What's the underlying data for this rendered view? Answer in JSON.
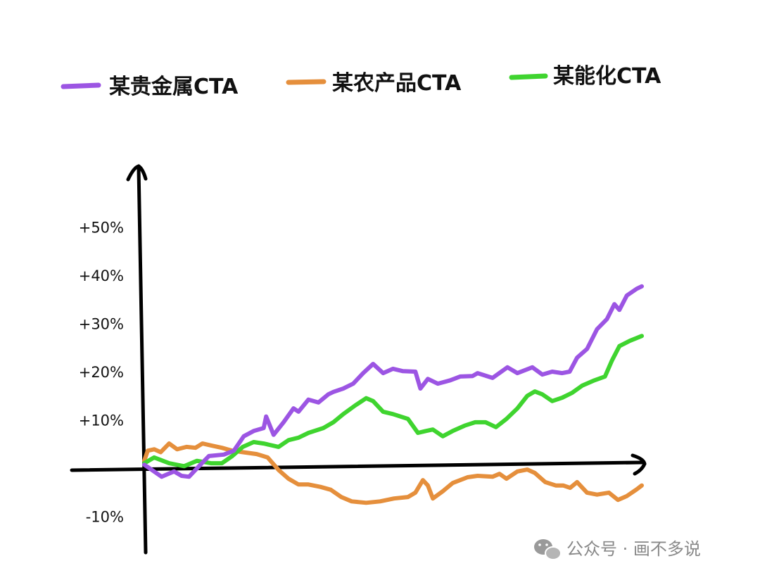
{
  "chart_data": {
    "type": "line",
    "title": "",
    "xlabel": "",
    "ylabel": "",
    "ylim": [
      -17,
      62
    ],
    "xlim": [
      0,
      100
    ],
    "grid": false,
    "legend_position": "top",
    "yticks": [
      {
        "label": "+50%",
        "value": 50
      },
      {
        "label": "+40%",
        "value": 40
      },
      {
        "label": "+30%",
        "value": 30
      },
      {
        "label": "+20%",
        "value": 20
      },
      {
        "label": "+10%",
        "value": 10
      },
      {
        "label": "-10%",
        "value": -10
      }
    ],
    "series": [
      {
        "name": "某贵金属CTA",
        "color": "#9c55e3",
        "x": [
          0,
          1,
          3.5,
          6,
          7.5,
          9,
          11,
          13,
          16,
          18,
          20,
          22,
          24,
          24.5,
          26,
          28,
          30,
          31,
          33,
          35,
          37,
          38,
          40,
          42,
          44,
          46,
          48,
          50,
          52,
          54.5,
          55.5,
          57,
          59,
          61.5,
          63.5,
          66,
          67,
          70,
          73,
          75,
          78,
          80,
          82,
          84,
          85.5,
          87,
          89,
          91,
          93,
          94.5,
          95.5,
          97,
          99,
          100
        ],
        "values": [
          0.7,
          0,
          -1.8,
          -0.7,
          -1.6,
          -1.8,
          0.4,
          2.5,
          2.8,
          3.6,
          6.6,
          7.7,
          8.3,
          10.7,
          6.9,
          9.5,
          12.4,
          11.7,
          14.2,
          13.6,
          15.3,
          15.8,
          16.5,
          17.5,
          19.7,
          21.6,
          19.7,
          20.6,
          20.1,
          20,
          16.5,
          18.5,
          17.5,
          18.2,
          19,
          19.1,
          19.7,
          18.7,
          20.9,
          19.7,
          20.9,
          19.4,
          20,
          19.7,
          20,
          22.9,
          24.7,
          28.8,
          30.9,
          34,
          32.8,
          35.8,
          37.2,
          37.7
        ]
      },
      {
        "name": "某农产品CTA",
        "color": "#e58f3c",
        "x": [
          0,
          0.7,
          2,
          3.3,
          5,
          6.6,
          8.5,
          10.3,
          11.7,
          13.4,
          15.6,
          17.7,
          19.8,
          22.6,
          24.8,
          27,
          29,
          31,
          33,
          35.4,
          37.5,
          39.6,
          41.7,
          44.6,
          47.4,
          50.2,
          53,
          54.5,
          56,
          57,
          58,
          60,
          62,
          65,
          67,
          70,
          71.4,
          72.8,
          75,
          77,
          78.5,
          80.6,
          82.7,
          84.2,
          85.6,
          87,
          89,
          91,
          93.4,
          95.2,
          97,
          99,
          100
        ],
        "values": [
          1.5,
          3.6,
          3.9,
          3.3,
          5.1,
          3.9,
          4.4,
          4.2,
          5.1,
          4.7,
          4.2,
          3.6,
          3.3,
          2.9,
          2.2,
          -0.4,
          -2.2,
          -3.4,
          -3.4,
          -3.9,
          -4.5,
          -6,
          -6.9,
          -7.2,
          -6.9,
          -6.3,
          -6,
          -5.1,
          -2.5,
          -3.6,
          -6.3,
          -4.8,
          -3.1,
          -1.9,
          -1.6,
          -1.8,
          -1.2,
          -2.2,
          -0.7,
          -0.3,
          -1,
          -2.9,
          -3.6,
          -3.6,
          -4.1,
          -2.9,
          -5.1,
          -5.5,
          -5.1,
          -6.6,
          -5.8,
          -4.4,
          -3.6
        ]
      },
      {
        "name": "某能化CTA",
        "color": "#3fd42f",
        "x": [
          0,
          2,
          5,
          8,
          10.6,
          13.4,
          15.6,
          17.7,
          19.8,
          22,
          24,
          27,
          29,
          31,
          33,
          36,
          38,
          40,
          42.4,
          44.6,
          46,
          48,
          50,
          53,
          55,
          56.6,
          58,
          60,
          62,
          64.4,
          66.5,
          68.6,
          70.7,
          72.8,
          75,
          77,
          78.5,
          80,
          82,
          84,
          86,
          88,
          90.5,
          92.6,
          94,
          95.5,
          97.6,
          100
        ],
        "values": [
          1,
          2.2,
          1,
          0.4,
          1.5,
          1,
          1,
          2.5,
          4.4,
          5.4,
          5.1,
          4.4,
          5.8,
          6.3,
          7.3,
          8.3,
          9.5,
          11.2,
          13,
          14.5,
          13.9,
          11.7,
          11.2,
          10.2,
          7.3,
          7.7,
          8,
          6.6,
          7.7,
          8.8,
          9.5,
          9.5,
          8.5,
          10.2,
          12.4,
          15,
          15.9,
          15.3,
          13.9,
          14.6,
          15.6,
          17.1,
          18.2,
          19,
          22.3,
          25.3,
          26.4,
          27.4
        ]
      }
    ]
  },
  "watermark": {
    "icon": "wechat-icon",
    "text": "公众号 · 画不多说"
  }
}
